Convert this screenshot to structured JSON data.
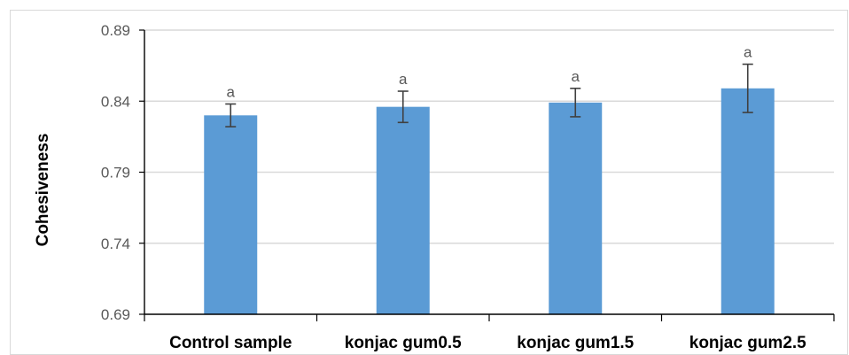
{
  "chart_data": {
    "type": "bar",
    "title": "",
    "xlabel": "",
    "ylabel": "Cohesiveness",
    "categories": [
      "Control sample",
      "konjac gum0.5",
      "konjac gum1.5",
      "konjac gum2.5"
    ],
    "series": [
      {
        "values": [
          0.83,
          0.836,
          0.839,
          0.849
        ],
        "error": [
          0.008,
          0.011,
          0.01,
          0.017
        ],
        "labels": [
          "a",
          "a",
          "a",
          "a"
        ]
      }
    ],
    "ylim": [
      0.69,
      0.89
    ],
    "yticks": [
      "0.89",
      "0.84",
      "0.79",
      "0.74",
      "0.69"
    ],
    "ytick_values": [
      0.89,
      0.84,
      0.79,
      0.74,
      0.69
    ],
    "grid": true,
    "legend": "none",
    "bar_color": "#5b9bd5",
    "grid_color": "#d9d9d9",
    "error_color": "#404040"
  }
}
